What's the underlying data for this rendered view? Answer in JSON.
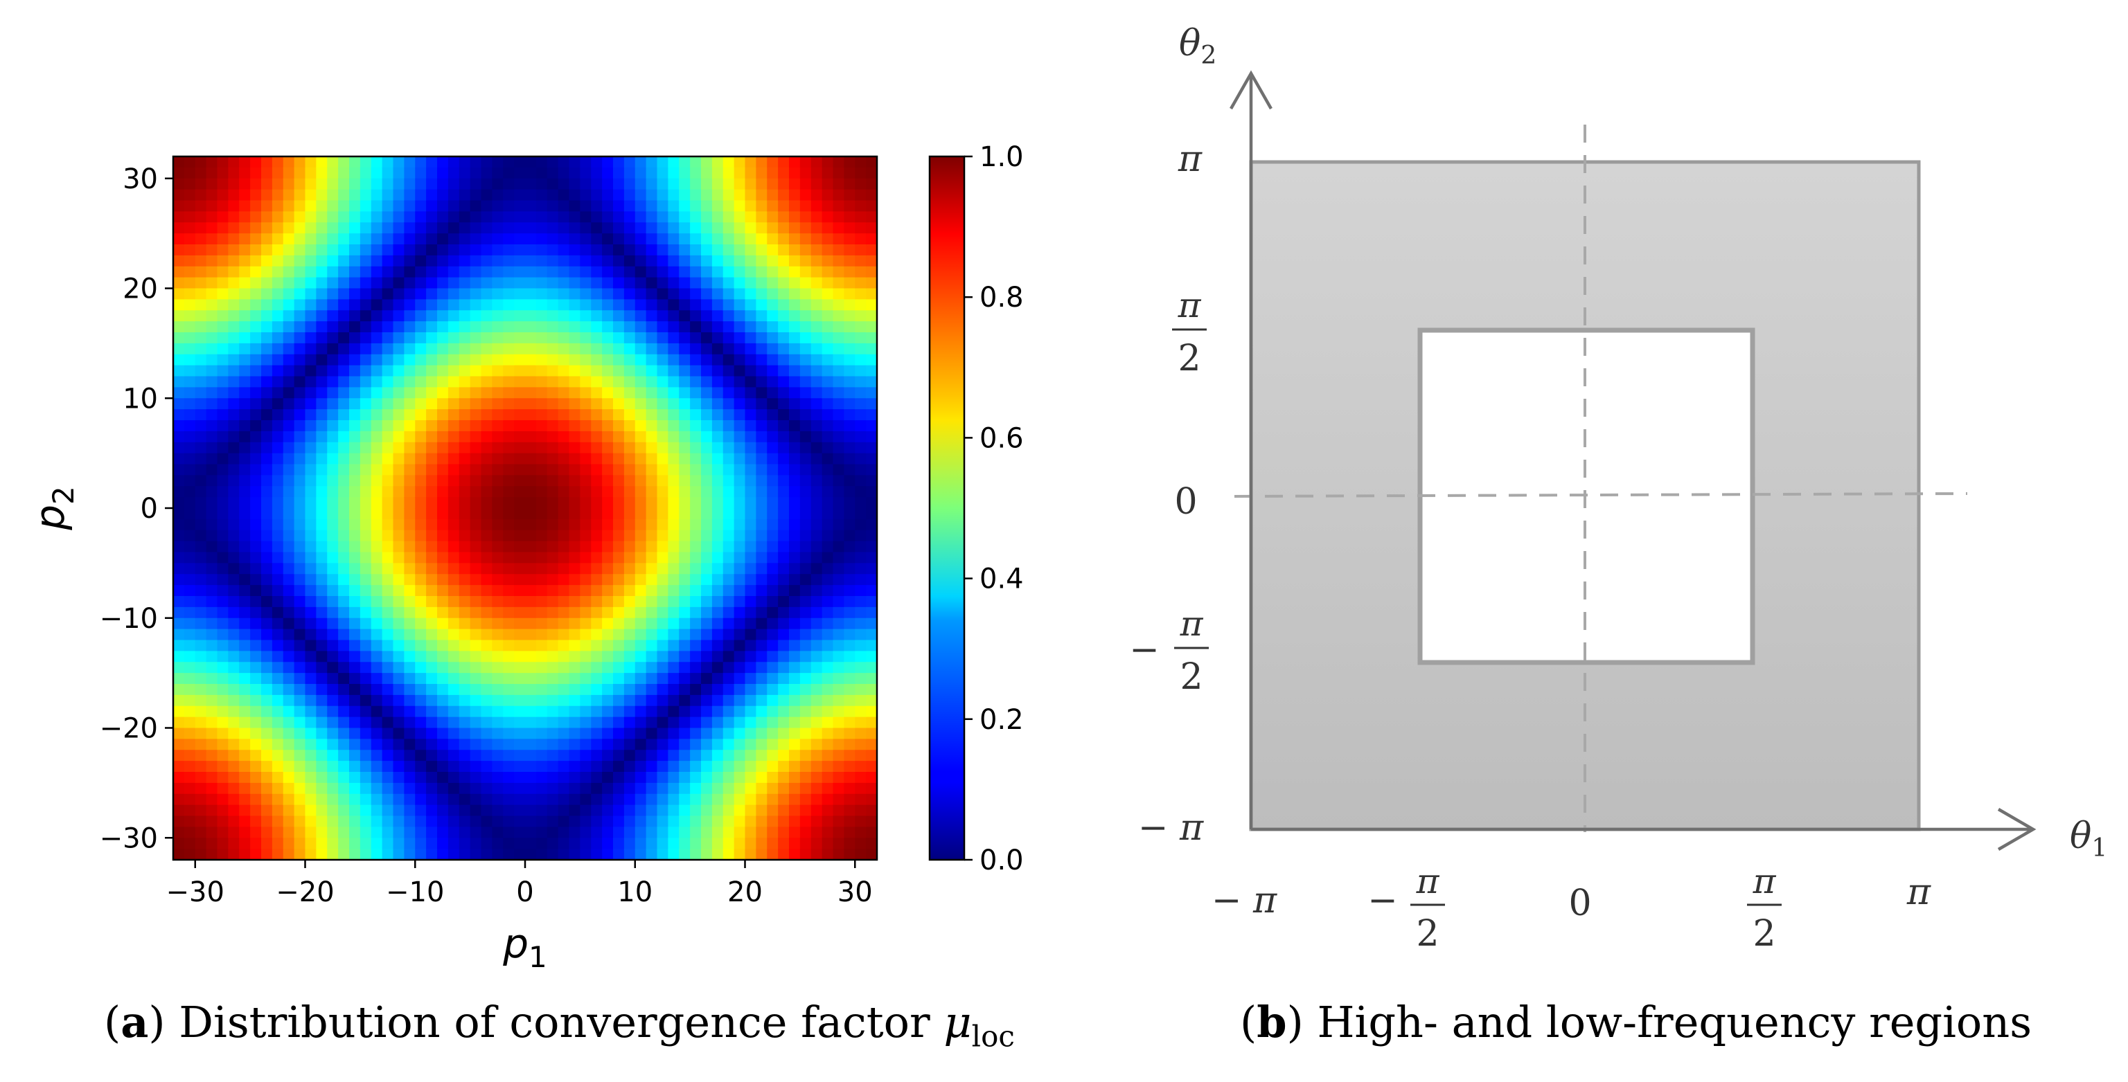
{
  "chart_data": [
    {
      "type": "heatmap",
      "title": "",
      "xlabel": "p",
      "xlabel_sub": "1",
      "ylabel": "p",
      "ylabel_sub": "2",
      "xlim": [
        -32,
        32
      ],
      "ylim": [
        -32,
        32
      ],
      "grid_size": 64,
      "x_ticks": [
        -30,
        -20,
        -10,
        0,
        10,
        20,
        30
      ],
      "y_ticks": [
        -30,
        -20,
        -10,
        0,
        10,
        20,
        30
      ],
      "x_tick_labels": [
        "−30",
        "−20",
        "−10",
        "0",
        "10",
        "20",
        "30"
      ],
      "y_tick_labels": [
        "−30",
        "−20",
        "−10",
        "0",
        "10",
        "20",
        "30"
      ],
      "colormap": "jet",
      "colorbar_range": [
        0.0,
        1.0
      ],
      "colorbar_tick_labels": [
        "0.0",
        "0.2",
        "0.4",
        "0.6",
        "0.8",
        "1.0"
      ],
      "function": "mu_loc(p1,p2) = |cos(pi*p1/32)+cos(pi*p2/32)|/2",
      "peak_value": 1.0,
      "min_value": 0.0
    },
    {
      "type": "diagram",
      "title": "",
      "xlabel": "θ",
      "xlabel_sub": "1",
      "ylabel": "θ",
      "ylabel_sub": "2",
      "x_tick_labels": [
        "− π",
        "−",
        "0",
        "π"
      ],
      "y_tick_labels": [
        "π",
        "0",
        "−",
        "− π"
      ],
      "frac_numerator": "π",
      "frac_denominator": "2",
      "outer_region": "high-frequency",
      "inner_region": "low-frequency",
      "outer_range": [
        -3.1416,
        3.1416
      ],
      "inner_range": [
        -1.5708,
        1.5708
      ],
      "high_freq_color": "#c9c9c9",
      "low_freq_color": "#ffffff"
    }
  ],
  "captions": {
    "a_label": "a",
    "a_text": "Distribution of convergence factor",
    "a_symbol": "μ",
    "a_symbol_sub": "loc",
    "b_label": "b",
    "b_text": "High- and low-frequency regions"
  }
}
